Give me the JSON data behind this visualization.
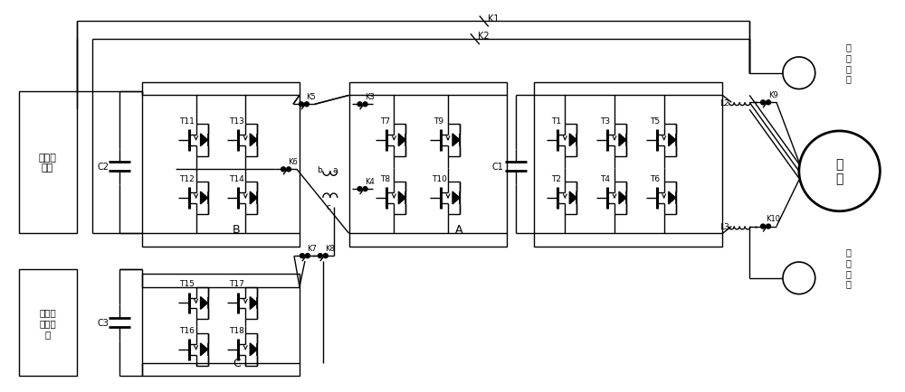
{
  "bg_color": "#ffffff",
  "lc": "#000000",
  "lw": 1.0,
  "fig_w": 10.0,
  "fig_h": 4.35,
  "labels": {
    "dongli": "动力电\n池组",
    "chezai": "车载低\n压蓄电\n池",
    "chongdian": "充\n电\n接\n口",
    "shuchu": "输\n出\n接\n口",
    "dianji": "电\n机",
    "C2": "C2",
    "C3": "C3",
    "C1": "C1",
    "B": "B",
    "A": "A",
    "C": "C",
    "K1": "K1",
    "K2": "K2",
    "K3": "K3",
    "K4": "K4",
    "K5": "K5",
    "K6": "K6",
    "K7": "K7",
    "K8": "K8",
    "K9": "K9",
    "K10": "K10",
    "L2": "L2",
    "L3": "L3",
    "a": "a",
    "b": "b",
    "c": "c",
    "T1": "T1",
    "T2": "T2",
    "T3": "T3",
    "T4": "T4",
    "T5": "T5",
    "T6": "T6",
    "T7": "T7",
    "T8": "T8",
    "T9": "T9",
    "T10": "T10",
    "T11": "T11",
    "T12": "T12",
    "T13": "T13",
    "T14": "T14",
    "T15": "T15",
    "T16": "T16",
    "T17": "T17",
    "T18": "T18"
  }
}
